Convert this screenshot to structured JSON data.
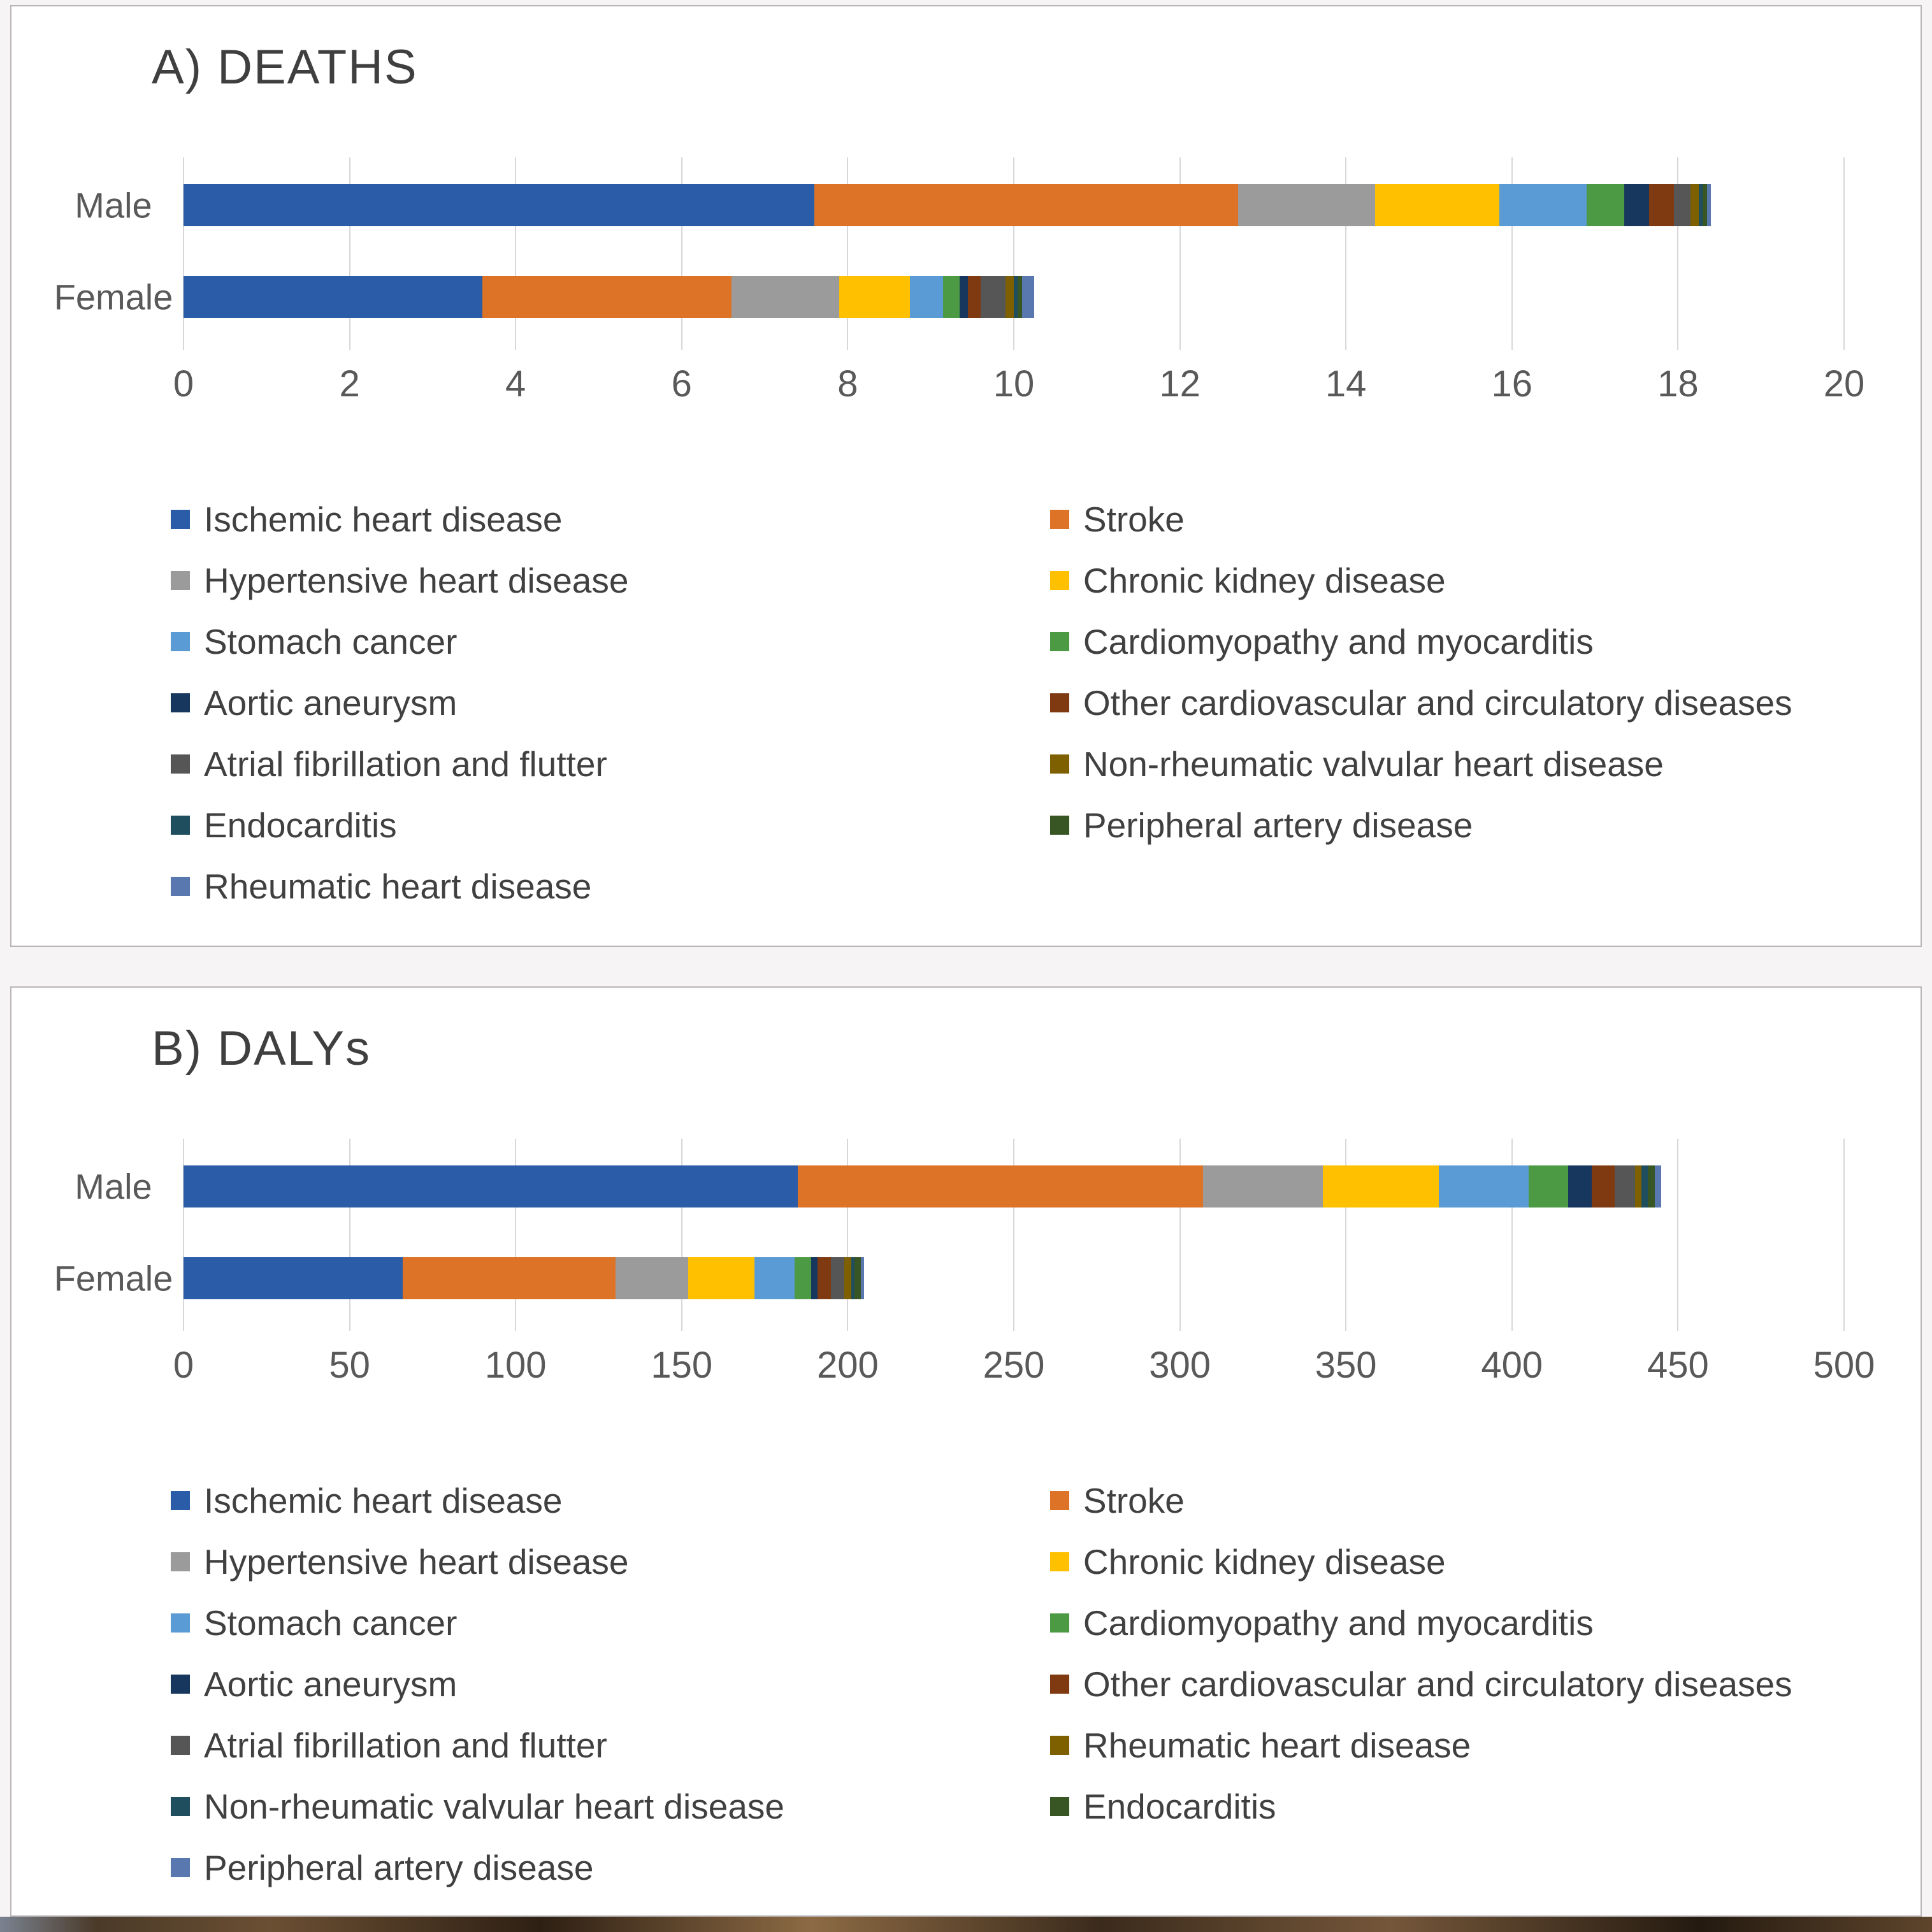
{
  "figure": {
    "background": "#f7f4f5",
    "panel_border": "#b9b5b7"
  },
  "chart_data": [
    {
      "type": "bar",
      "stacked": true,
      "orientation": "horizontal",
      "title": "A) DEATHS",
      "categories": [
        "Male",
        "Female"
      ],
      "xlim": [
        0,
        20
      ],
      "xticks": [
        0,
        2,
        4,
        6,
        8,
        10,
        12,
        14,
        16,
        18,
        20
      ],
      "grid": true,
      "legend_position": "bottom-two-columns",
      "series": [
        {
          "name": "Ischemic heart disease",
          "color": "#2a5ca8",
          "values": [
            7.6,
            3.6
          ]
        },
        {
          "name": "Stroke",
          "color": "#dd7327",
          "values": [
            5.1,
            3.0
          ]
        },
        {
          "name": "Hypertensive heart disease",
          "color": "#9b9b9b",
          "values": [
            1.65,
            1.3
          ]
        },
        {
          "name": "Chronic kidney disease",
          "color": "#ffc000",
          "values": [
            1.5,
            0.85
          ]
        },
        {
          "name": "Stomach cancer",
          "color": "#5b9bd5",
          "values": [
            1.05,
            0.4
          ]
        },
        {
          "name": "Cardiomyopathy and myocarditis",
          "color": "#4c9b44",
          "values": [
            0.45,
            0.2
          ]
        },
        {
          "name": "Aortic aneurysm",
          "color": "#17375e",
          "values": [
            0.3,
            0.1
          ]
        },
        {
          "name": "Other cardiovascular and circulatory diseases",
          "color": "#7f3a12",
          "values": [
            0.3,
            0.15
          ]
        },
        {
          "name": "Atrial fibrillation and flutter",
          "color": "#565656",
          "values": [
            0.2,
            0.3
          ]
        },
        {
          "name": "Non-rheumatic valvular heart disease",
          "color": "#7f6000",
          "values": [
            0.1,
            0.1
          ]
        },
        {
          "name": "Endocarditis",
          "color": "#1f4e5f",
          "values": [
            0.05,
            0.05
          ]
        },
        {
          "name": "Peripheral artery disease",
          "color": "#375623",
          "values": [
            0.05,
            0.05
          ]
        },
        {
          "name": "Rheumatic heart disease",
          "color": "#5a78b0",
          "values": [
            0.05,
            0.15
          ]
        }
      ]
    },
    {
      "type": "bar",
      "stacked": true,
      "orientation": "horizontal",
      "title": "B) DALYs",
      "categories": [
        "Male",
        "Female"
      ],
      "xlim": [
        0,
        500
      ],
      "xticks": [
        0,
        50,
        100,
        150,
        200,
        250,
        300,
        350,
        400,
        450,
        500
      ],
      "grid": true,
      "legend_position": "bottom-two-columns",
      "series": [
        {
          "name": "Ischemic heart disease",
          "color": "#2a5ca8",
          "values": [
            185,
            66
          ]
        },
        {
          "name": "Stroke",
          "color": "#dd7327",
          "values": [
            122,
            64
          ]
        },
        {
          "name": "Hypertensive heart disease",
          "color": "#9b9b9b",
          "values": [
            36,
            22
          ]
        },
        {
          "name": "Chronic kidney disease",
          "color": "#ffc000",
          "values": [
            35,
            20
          ]
        },
        {
          "name": "Stomach cancer",
          "color": "#5b9bd5",
          "values": [
            27,
            12
          ]
        },
        {
          "name": "Cardiomyopathy and myocarditis",
          "color": "#4c9b44",
          "values": [
            12,
            5
          ]
        },
        {
          "name": "Aortic aneurysm",
          "color": "#17375e",
          "values": [
            7,
            2
          ]
        },
        {
          "name": "Other cardiovascular and circulatory diseases",
          "color": "#7f3a12",
          "values": [
            7,
            4
          ]
        },
        {
          "name": "Atrial fibrillation and flutter",
          "color": "#565656",
          "values": [
            6,
            4
          ]
        },
        {
          "name": "Rheumatic heart disease",
          "color": "#7f6000",
          "values": [
            2,
            2
          ]
        },
        {
          "name": "Non-rheumatic valvular heart disease",
          "color": "#1f4e5f",
          "values": [
            2,
            1
          ]
        },
        {
          "name": "Endocarditis",
          "color": "#375623",
          "values": [
            2,
            2
          ]
        },
        {
          "name": "Peripheral artery disease",
          "color": "#5a78b0",
          "values": [
            2,
            1
          ]
        }
      ]
    }
  ]
}
